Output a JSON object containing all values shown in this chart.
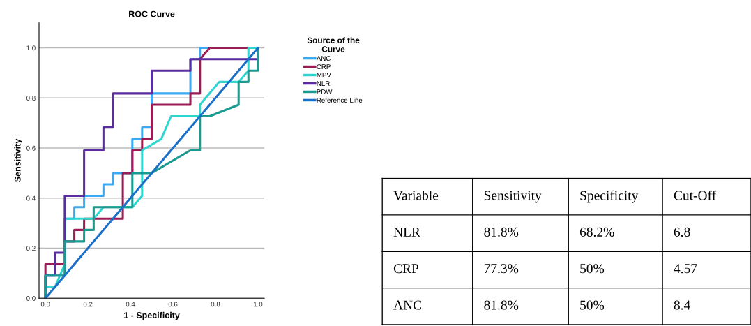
{
  "chart_data": [
    {
      "type": "line",
      "title": "ROC Curve",
      "xlabel": "1 - Specificity",
      "ylabel": "Sensitivity",
      "legend_title": "Source of the\nCurve",
      "legend": "right",
      "grid": "y",
      "marker": "none",
      "line_style": "solid",
      "xlim": [
        -0.03,
        1.03
      ],
      "ylim": [
        0,
        1.1
      ],
      "xticks": [
        {
          "value": 0,
          "label": "0.0"
        },
        {
          "value": 0.2,
          "label": "0.2"
        },
        {
          "value": 0.4,
          "label": "0.4"
        },
        {
          "value": 0.6,
          "label": "0.6"
        },
        {
          "value": 0.8,
          "label": "0.8"
        },
        {
          "value": 1,
          "label": "1.0"
        }
      ],
      "yticks": [
        {
          "value": 0,
          "label": "0.0"
        },
        {
          "value": 0.2,
          "label": "0.2"
        },
        {
          "value": 0.4,
          "label": "0.4"
        },
        {
          "value": 0.6,
          "label": "0.6"
        },
        {
          "value": 0.8,
          "label": "0.8"
        },
        {
          "value": 1,
          "label": "1.0"
        }
      ],
      "series": [
        {
          "name": "ANC",
          "color": "#3aaaf5",
          "x": [
            0,
            0,
            0.091,
            0.091,
            0.136,
            0.136,
            0.182,
            0.182,
            0.273,
            0.273,
            0.318,
            0.318,
            0.409,
            0.409,
            0.455,
            0.455,
            0.5,
            0.5,
            0.682,
            0.682,
            0.727,
            0.727,
            1
          ],
          "values": [
            0,
            0.091,
            0.091,
            0.318,
            0.318,
            0.364,
            0.364,
            0.409,
            0.409,
            0.455,
            0.455,
            0.5,
            0.5,
            0.636,
            0.636,
            0.682,
            0.682,
            0.818,
            0.818,
            0.955,
            0.955,
            1,
            1
          ]
        },
        {
          "name": "CRP",
          "color": "#9b1c55",
          "x": [
            0,
            0,
            0.091,
            0.091,
            0.136,
            0.136,
            0.182,
            0.182,
            0.364,
            0.364,
            0.409,
            0.409,
            0.455,
            0.455,
            0.5,
            0.5,
            0.682,
            0.682,
            0.727,
            0.727,
            0.773,
            0.955,
            1
          ],
          "values": [
            0,
            0.136,
            0.136,
            0.227,
            0.227,
            0.273,
            0.273,
            0.318,
            0.318,
            0.5,
            0.5,
            0.591,
            0.591,
            0.636,
            0.636,
            0.773,
            0.773,
            0.818,
            0.818,
            0.955,
            1,
            1,
            1
          ]
        },
        {
          "name": "MPV",
          "color": "#2fd6d0",
          "x": [
            0,
            0,
            0.045,
            0.091,
            0.091,
            0.227,
            0.273,
            0.409,
            0.455,
            0.455,
            0.545,
            0.591,
            0.727,
            0.727,
            0.818,
            0.909,
            0.955,
            0.955,
            1
          ],
          "values": [
            0,
            0.045,
            0.045,
            0.136,
            0.318,
            0.318,
            0.364,
            0.364,
            0.409,
            0.591,
            0.636,
            0.727,
            0.727,
            0.773,
            0.864,
            0.864,
            0.909,
            1,
            1
          ]
        },
        {
          "name": "NLR",
          "color": "#5b2ca0",
          "x": [
            0,
            0,
            0.045,
            0.045,
            0.091,
            0.091,
            0.182,
            0.182,
            0.273,
            0.273,
            0.318,
            0.318,
            0.5,
            0.5,
            0.682,
            0.682,
            1,
            1
          ],
          "values": [
            0,
            0.091,
            0.091,
            0.182,
            0.182,
            0.409,
            0.409,
            0.591,
            0.591,
            0.682,
            0.682,
            0.818,
            0.818,
            0.909,
            0.909,
            0.955,
            0.955,
            1
          ]
        },
        {
          "name": "PDW",
          "color": "#1a9a90",
          "x": [
            0,
            0,
            0.091,
            0.091,
            0.182,
            0.182,
            0.227,
            0.227,
            0.409,
            0.409,
            0.5,
            0.682,
            0.727,
            0.727,
            0.773,
            0.909,
            0.909,
            0.955,
            0.955,
            1,
            1
          ],
          "values": [
            0,
            0.091,
            0.091,
            0.227,
            0.227,
            0.273,
            0.273,
            0.364,
            0.364,
            0.5,
            0.5,
            0.591,
            0.591,
            0.727,
            0.727,
            0.773,
            0.864,
            0.864,
            0.909,
            0.909,
            1
          ]
        },
        {
          "name": "Reference Line",
          "color": "#1a6fc8",
          "x": [
            0,
            1
          ],
          "values": [
            0,
            1
          ]
        }
      ]
    },
    {
      "type": "other",
      "categories": [
        "Variable",
        "Sensitivity",
        "Specificity",
        "Cut-Off"
      ],
      "cell_labels": [
        [
          "NLR",
          "81.8%",
          "68.2%",
          "6.8"
        ],
        [
          "CRP",
          "77.3%",
          "50%",
          "4.57"
        ],
        [
          "ANC",
          "81.8%",
          "50%",
          "8.4"
        ]
      ]
    }
  ]
}
